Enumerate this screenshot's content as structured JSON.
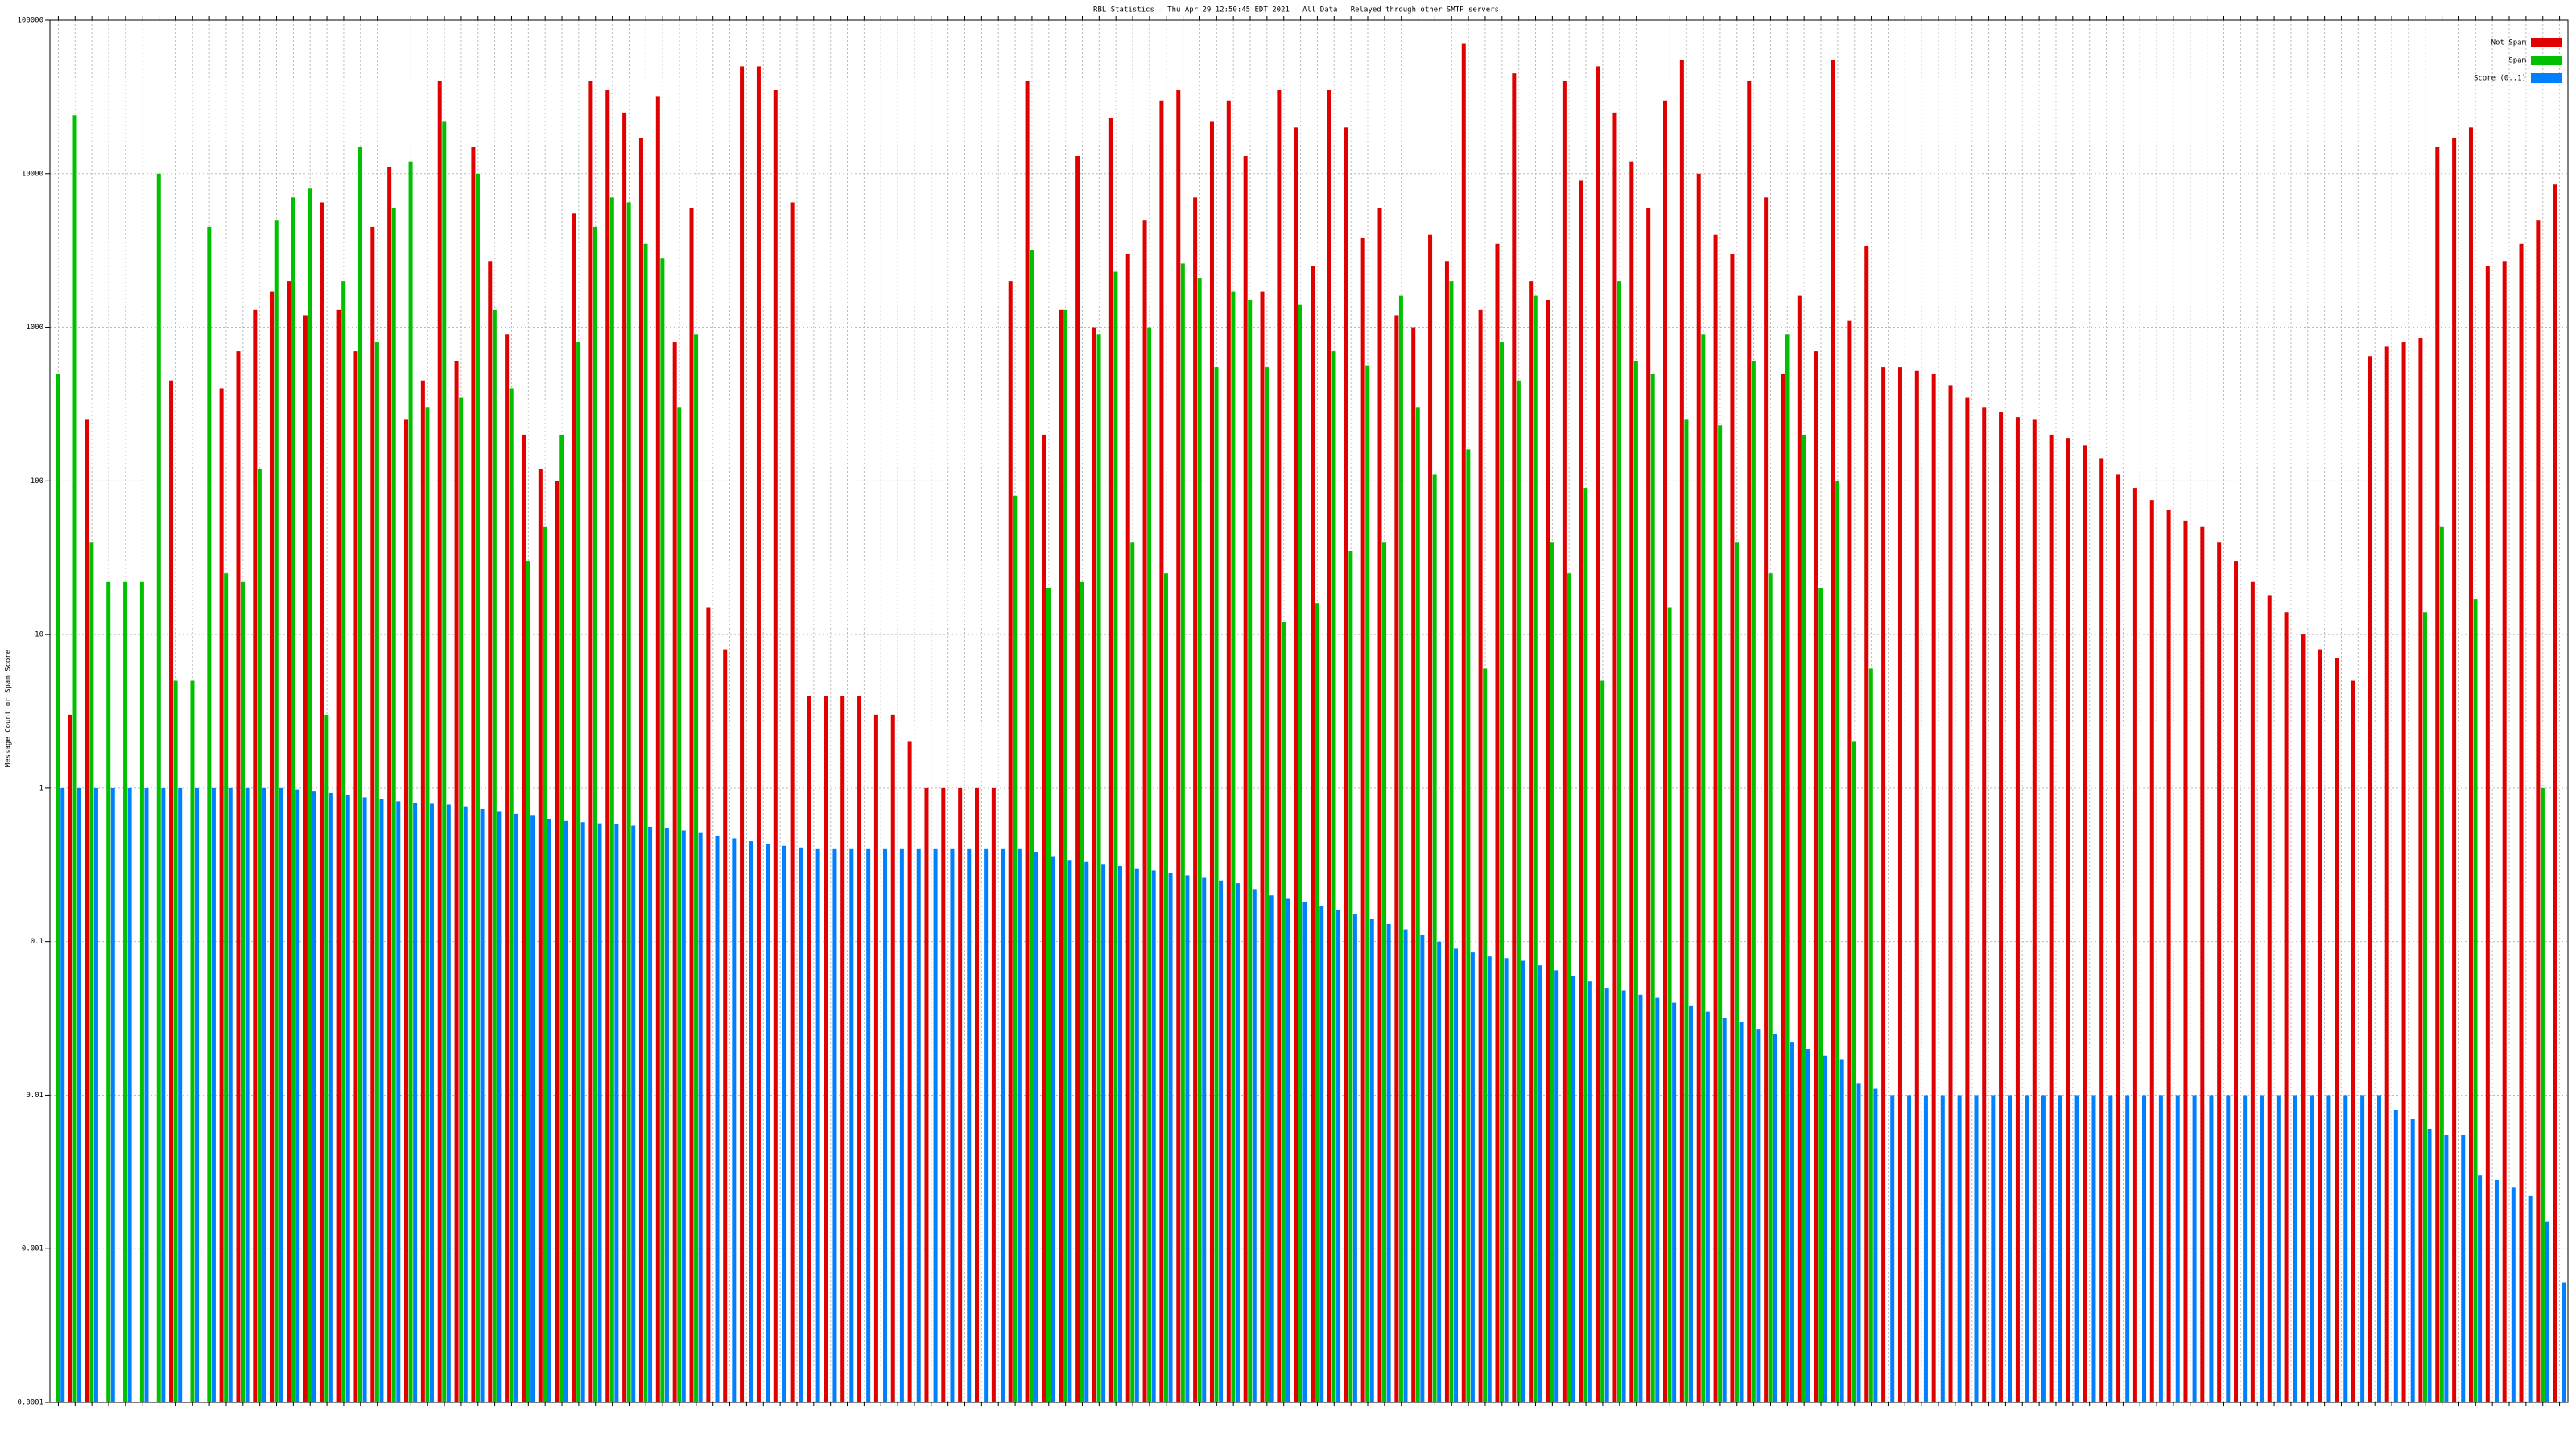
{
  "chart_data": {
    "type": "bar",
    "title": "RBL Statistics - Thu Apr 29 12:50:45 EDT 2021 - All Data - Relayed through other SMTP servers",
    "ylabel": "Message Count or Spam Score",
    "log_scale": true,
    "grid": true,
    "legend": "upper right",
    "ylim": [
      0.0001,
      100000
    ],
    "yticks": [
      0.0001,
      0.001,
      0.01,
      0.1,
      1,
      10,
      100,
      1000,
      10000,
      100000
    ],
    "series": [
      {
        "name": "Not Spam",
        "color": "#e00000",
        "values": [
          null,
          3,
          250,
          null,
          null,
          null,
          null,
          450,
          null,
          null,
          400,
          700,
          1300,
          1700,
          2000,
          1200,
          6500,
          1300,
          700,
          4500,
          11000,
          250,
          450,
          40000,
          600,
          15000,
          2700,
          900,
          200,
          120,
          100,
          5500,
          40000,
          35000,
          25000,
          17000,
          32000,
          800,
          6000,
          15,
          8,
          50000,
          50000,
          35000,
          6500,
          4,
          4,
          4,
          4,
          3,
          3,
          2,
          1,
          1,
          1,
          1,
          1,
          2000,
          40000,
          200,
          1300,
          13000,
          1000,
          23000,
          3000,
          5000,
          30000,
          35000,
          7000,
          22000,
          30000,
          13000,
          1700,
          35000,
          20000,
          2500,
          35000,
          20000,
          3800,
          6000,
          1200,
          1000,
          4000,
          2700,
          70000,
          1300,
          3500,
          45000,
          2000,
          1500,
          40000,
          9000,
          50000,
          25000,
          12000,
          6000,
          30000,
          55000,
          10000,
          4000,
          3000,
          40000,
          7000,
          500,
          1600,
          700,
          55000,
          1100,
          3400,
          550,
          550,
          520,
          500,
          420,
          350,
          300,
          280,
          260,
          250,
          200,
          190,
          170,
          140,
          110,
          90,
          75,
          65,
          55,
          50,
          40,
          30,
          22,
          18,
          14,
          10,
          8,
          7,
          5,
          650,
          750,
          800,
          850,
          15000,
          17000,
          20000,
          2500,
          2700,
          3500,
          5000,
          8500
        ]
      },
      {
        "name": "Spam",
        "color": "#00c000",
        "values": [
          500,
          24000,
          40,
          22,
          22,
          22,
          10000,
          5,
          5,
          4500,
          25,
          22,
          120,
          5000,
          7000,
          8000,
          3,
          2000,
          15000,
          800,
          6000,
          12000,
          300,
          22000,
          350,
          10000,
          1300,
          400,
          30,
          50,
          200,
          800,
          4500,
          7000,
          6500,
          3500,
          2800,
          300,
          900,
          null,
          null,
          null,
          null,
          null,
          null,
          null,
          null,
          null,
          null,
          null,
          null,
          null,
          null,
          null,
          null,
          null,
          null,
          80,
          3200,
          20,
          1300,
          22,
          900,
          2300,
          40,
          1000,
          25,
          2600,
          2100,
          550,
          1700,
          1500,
          550,
          12,
          1400,
          16,
          700,
          35,
          560,
          40,
          1600,
          300,
          110,
          2000,
          160,
          6,
          800,
          450,
          1600,
          40,
          25,
          90,
          5,
          2000,
          600,
          500,
          15,
          250,
          900,
          230,
          40,
          600,
          25,
          900,
          200,
          20,
          100,
          2,
          6,
          null,
          null,
          null,
          null,
          null,
          null,
          null,
          null,
          null,
          null,
          null,
          null,
          null,
          null,
          null,
          null,
          null,
          null,
          null,
          null,
          null,
          null,
          null,
          null,
          null,
          null,
          null,
          null,
          null,
          null,
          null,
          null,
          14,
          50,
          null,
          17,
          null,
          null,
          null,
          1,
          null
        ]
      },
      {
        "name": "Score (0..1)",
        "color": "#0080ff",
        "values": [
          1,
          1,
          1,
          1,
          1,
          1,
          1,
          1,
          1,
          1,
          1,
          1,
          1,
          1,
          0.98,
          0.95,
          0.93,
          0.9,
          0.87,
          0.85,
          0.82,
          0.8,
          0.79,
          0.78,
          0.76,
          0.73,
          0.7,
          0.68,
          0.66,
          0.63,
          0.61,
          0.6,
          0.59,
          0.58,
          0.57,
          0.56,
          0.55,
          0.53,
          0.51,
          0.49,
          0.47,
          0.45,
          0.43,
          0.42,
          0.41,
          0.4,
          0.4,
          0.4,
          0.4,
          0.4,
          0.4,
          0.4,
          0.4,
          0.4,
          0.4,
          0.4,
          0.4,
          0.4,
          0.38,
          0.36,
          0.34,
          0.33,
          0.32,
          0.31,
          0.3,
          0.29,
          0.28,
          0.27,
          0.26,
          0.25,
          0.24,
          0.22,
          0.2,
          0.19,
          0.18,
          0.17,
          0.16,
          0.15,
          0.14,
          0.13,
          0.12,
          0.11,
          0.1,
          0.09,
          0.085,
          0.08,
          0.078,
          0.075,
          0.07,
          0.065,
          0.06,
          0.055,
          0.05,
          0.048,
          0.045,
          0.043,
          0.04,
          0.038,
          0.035,
          0.032,
          0.03,
          0.027,
          0.025,
          0.022,
          0.02,
          0.018,
          0.017,
          0.012,
          0.011,
          0.01,
          0.01,
          0.01,
          0.01,
          0.01,
          0.01,
          0.01,
          0.01,
          0.01,
          0.01,
          0.01,
          0.01,
          0.01,
          0.01,
          0.01,
          0.01,
          0.01,
          0.01,
          0.01,
          0.01,
          0.01,
          0.01,
          0.01,
          0.01,
          0.01,
          0.01,
          0.01,
          0.01,
          0.01,
          0.01,
          0.008,
          0.007,
          0.006,
          0.0055,
          0.0055,
          0.003,
          0.0028,
          0.0025,
          0.0022,
          0.0015,
          0.0006
        ]
      }
    ]
  }
}
